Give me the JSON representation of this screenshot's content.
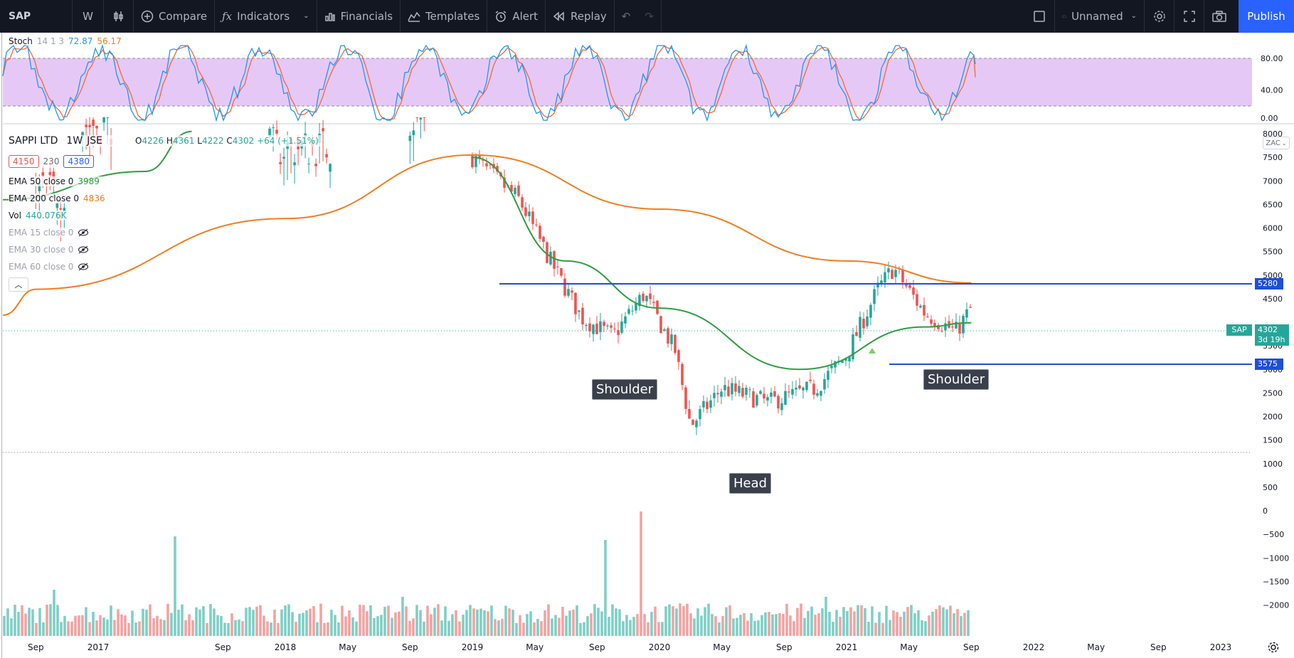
{
  "toolbar": {
    "symbol": "SAP",
    "interval": "W",
    "compare": "Compare",
    "indicators": "Indicators",
    "financials": "Financials",
    "templates": "Templates",
    "alert": "Alert",
    "replay": "Replay",
    "layout_name": "Unnamed",
    "publish": "Publish"
  },
  "stoch": {
    "label": "Stoch",
    "params": "14 1 3",
    "k_value": "72.87",
    "d_value": "56.17",
    "axis_labels": [
      "80.00",
      "40.00",
      "0.00"
    ]
  },
  "legend": {
    "name": "SAPPI LTD",
    "interval": "1W",
    "exchange": "JSE",
    "o_label": "O",
    "o_value": "4226",
    "h_label": "H",
    "h_value": "4361",
    "l_label": "L",
    "l_value": "4222",
    "c_label": "C",
    "c_value": "4302",
    "change": "+64 (+1.51%)",
    "bid": "4150",
    "spread": "230",
    "ask": "4380",
    "ema50_label": "EMA 50 close 0",
    "ema50_value": "3989",
    "ema200_label": "EMA 200 close 0",
    "ema200_value": "4836",
    "vol_label": "Vol",
    "vol_value": "440.076K",
    "ema15_label": "EMA 15 close 0",
    "ema30_label": "EMA 30 close 0",
    "ema60_label": "EMA 60 close 0"
  },
  "price_axis": {
    "currency_tag": "ZAC",
    "labels": [
      "8000",
      "7500",
      "7000",
      "6500",
      "6000",
      "5500",
      "5000",
      "4500",
      "3500",
      "3000",
      "2500",
      "2000",
      "1500",
      "1000",
      "500",
      "0",
      "−500",
      "−1000",
      "−1500",
      "−2000"
    ],
    "resistance_tag": "5280",
    "support_tag": "3575",
    "symbol_tag": "SAP",
    "last_price_tag": "4302",
    "countdown": "3d 19h"
  },
  "time_axis": [
    "Sep",
    "2017",
    "Sep",
    "2018",
    "May",
    "Sep",
    "2019",
    "May",
    "Sep",
    "2020",
    "May",
    "Sep",
    "2021",
    "May",
    "Sep",
    "2022",
    "May",
    "Sep",
    "2023"
  ],
  "annotations": {
    "left_shoulder": "Shoulder",
    "head": "Head",
    "right_shoulder": "Shoulder"
  },
  "colors": {
    "toolbar_bg": "#131722",
    "accent": "#2962ff",
    "up": "#26a69a",
    "down": "#ef5350",
    "ema50": "#2e9e3f",
    "ema200": "#f57c1f",
    "stoch_k": "#2196f3",
    "stoch_d": "#f06a3a",
    "stoch_band": "#e6c8f7",
    "level_line": "#1e4fd8"
  },
  "chart_data": {
    "type": "candlestick",
    "symbol": "SAPPI LTD",
    "interval": "1W",
    "price_levels": {
      "resistance": 5280,
      "support": 3575,
      "last": 4302
    },
    "pattern": [
      "Shoulder",
      "Head",
      "Shoulder"
    ],
    "price_path": [
      {
        "x": "2019-01",
        "close": 7500
      },
      {
        "x": "2019-04",
        "close": 6600
      },
      {
        "x": "2019-06",
        "close": 5300
      },
      {
        "x": "2019-08",
        "close": 4100
      },
      {
        "x": "2019-10",
        "close": 3700
      },
      {
        "x": "2019-12",
        "close": 4600
      },
      {
        "x": "2020-02",
        "close": 3400
      },
      {
        "x": "2020-03",
        "close": 1800
      },
      {
        "x": "2020-05",
        "close": 2600
      },
      {
        "x": "2020-08",
        "close": 2300
      },
      {
        "x": "2020-11",
        "close": 2600
      },
      {
        "x": "2021-01",
        "close": 3300
      },
      {
        "x": "2021-03",
        "close": 4700
      },
      {
        "x": "2021-04",
        "close": 5150
      },
      {
        "x": "2021-06",
        "close": 4200
      },
      {
        "x": "2021-08",
        "close": 3800
      },
      {
        "x": "2021-09",
        "close": 4302
      }
    ],
    "ema50": [
      {
        "x": "2019-01",
        "value": 7500
      },
      {
        "x": "2019-07",
        "value": 5300
      },
      {
        "x": "2020-01",
        "value": 4300
      },
      {
        "x": "2020-10",
        "value": 3000
      },
      {
        "x": "2021-06",
        "value": 3900
      },
      {
        "x": "2021-09",
        "value": 3989
      }
    ],
    "ema200": [
      {
        "x": "2016-09",
        "value": 4700
      },
      {
        "x": "2018-01",
        "value": 6200
      },
      {
        "x": "2019-01",
        "value": 7550
      },
      {
        "x": "2020-01",
        "value": 6400
      },
      {
        "x": "2021-01",
        "value": 5300
      },
      {
        "x": "2021-09",
        "value": 4836
      }
    ],
    "stochastic": {
      "k": 72.87,
      "d": 56.17,
      "upper_band": 80,
      "lower_band": 20
    }
  }
}
